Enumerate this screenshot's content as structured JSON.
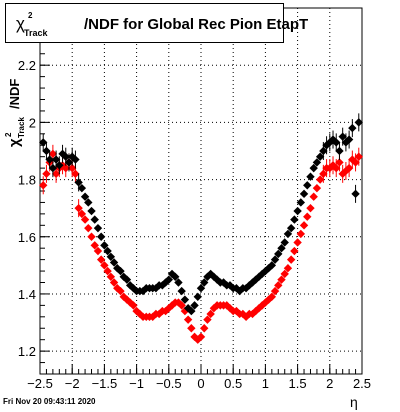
{
  "title": {
    "chi": "χ",
    "sup": "2",
    "sub": "Track",
    "rest": "/NDF for Global Rec Pion EtapT"
  },
  "date": "Fri Nov 20 09:43:11 2020",
  "chart_data": {
    "type": "scatter",
    "title": "χ²_Track/NDF for Global Rec Pion EtapT",
    "xlabel": "η",
    "ylabel": "χ²_Track/NDF",
    "xlim": [
      -2.5,
      2.5
    ],
    "ylim": [
      1.12,
      2.4
    ],
    "xticks": [
      -2.5,
      -2,
      -1.5,
      -1,
      -0.5,
      0,
      0.5,
      1,
      1.5,
      2,
      2.5
    ],
    "xtick_labels": [
      "−2.5",
      "−2",
      "−1.5",
      "−1",
      "−0.5",
      "0",
      "0.5",
      "1",
      "1.5",
      "2",
      "2.5"
    ],
    "yticks": [
      1.2,
      1.4,
      1.6,
      1.8,
      2.0,
      2.2
    ],
    "ytick_labels": [
      "1.2",
      "1.4",
      "1.6",
      "1.8",
      "2",
      "2.2"
    ],
    "grid": true,
    "series": [
      {
        "color": "#000000",
        "x": [
          -2.45,
          -2.4,
          -2.35,
          -2.3,
          -2.25,
          -2.2,
          -2.15,
          -2.1,
          -2.05,
          -2.0,
          -1.95,
          -1.9,
          -1.85,
          -1.8,
          -1.75,
          -1.7,
          -1.65,
          -1.6,
          -1.55,
          -1.5,
          -1.45,
          -1.4,
          -1.35,
          -1.3,
          -1.25,
          -1.2,
          -1.15,
          -1.1,
          -1.05,
          -1.0,
          -0.95,
          -0.9,
          -0.85,
          -0.8,
          -0.75,
          -0.7,
          -0.65,
          -0.6,
          -0.55,
          -0.5,
          -0.45,
          -0.4,
          -0.35,
          -0.3,
          -0.25,
          -0.2,
          -0.15,
          -0.1,
          -0.05,
          0.0,
          0.05,
          0.1,
          0.15,
          0.2,
          0.25,
          0.3,
          0.35,
          0.4,
          0.45,
          0.5,
          0.55,
          0.6,
          0.65,
          0.7,
          0.75,
          0.8,
          0.85,
          0.9,
          0.95,
          1.0,
          1.05,
          1.1,
          1.15,
          1.2,
          1.25,
          1.3,
          1.35,
          1.4,
          1.45,
          1.5,
          1.55,
          1.6,
          1.65,
          1.7,
          1.75,
          1.8,
          1.85,
          1.9,
          1.95,
          2.0,
          2.05,
          2.1,
          2.15,
          2.2,
          2.25,
          2.3,
          2.35,
          2.4,
          2.45
        ],
        "y": [
          1.93,
          1.9,
          1.87,
          1.84,
          1.87,
          1.85,
          1.89,
          1.88,
          1.86,
          1.88,
          1.87,
          1.79,
          1.77,
          1.74,
          1.72,
          1.69,
          1.66,
          1.63,
          1.6,
          1.57,
          1.55,
          1.53,
          1.51,
          1.49,
          1.48,
          1.46,
          1.45,
          1.43,
          1.42,
          1.41,
          1.41,
          1.41,
          1.42,
          1.42,
          1.42,
          1.42,
          1.43,
          1.43,
          1.44,
          1.45,
          1.47,
          1.46,
          1.44,
          1.41,
          1.38,
          1.35,
          1.34,
          1.36,
          1.39,
          1.42,
          1.44,
          1.46,
          1.47,
          1.46,
          1.45,
          1.44,
          1.44,
          1.43,
          1.43,
          1.42,
          1.42,
          1.41,
          1.42,
          1.42,
          1.43,
          1.44,
          1.45,
          1.46,
          1.47,
          1.48,
          1.49,
          1.5,
          1.52,
          1.54,
          1.56,
          1.58,
          1.61,
          1.63,
          1.66,
          1.69,
          1.72,
          1.75,
          1.78,
          1.81,
          1.84,
          1.86,
          1.88,
          1.9,
          1.92,
          1.93,
          1.94,
          1.93,
          1.9,
          1.95,
          1.93,
          1.94,
          1.98,
          1.75,
          2.0
        ]
      },
      {
        "color": "#ff0000",
        "x": [
          -2.45,
          -2.4,
          -2.35,
          -2.3,
          -2.25,
          -2.2,
          -2.15,
          -2.1,
          -2.05,
          -2.0,
          -1.95,
          -1.9,
          -1.85,
          -1.8,
          -1.75,
          -1.7,
          -1.65,
          -1.6,
          -1.55,
          -1.5,
          -1.45,
          -1.4,
          -1.35,
          -1.3,
          -1.25,
          -1.2,
          -1.15,
          -1.1,
          -1.05,
          -1.0,
          -0.95,
          -0.9,
          -0.85,
          -0.8,
          -0.75,
          -0.7,
          -0.65,
          -0.6,
          -0.55,
          -0.5,
          -0.45,
          -0.4,
          -0.35,
          -0.3,
          -0.25,
          -0.2,
          -0.15,
          -0.1,
          -0.05,
          0.0,
          0.05,
          0.1,
          0.15,
          0.2,
          0.25,
          0.3,
          0.35,
          0.4,
          0.45,
          0.5,
          0.55,
          0.6,
          0.65,
          0.7,
          0.75,
          0.8,
          0.85,
          0.9,
          0.95,
          1.0,
          1.05,
          1.1,
          1.15,
          1.2,
          1.25,
          1.3,
          1.35,
          1.4,
          1.45,
          1.5,
          1.55,
          1.6,
          1.65,
          1.7,
          1.75,
          1.8,
          1.85,
          1.9,
          1.95,
          2.0,
          2.05,
          2.1,
          2.15,
          2.2,
          2.25,
          2.3,
          2.35,
          2.4,
          2.45
        ],
        "y": [
          1.78,
          1.82,
          1.86,
          1.89,
          1.82,
          1.84,
          1.85,
          1.84,
          1.86,
          1.84,
          1.82,
          1.7,
          1.68,
          1.66,
          1.63,
          1.6,
          1.57,
          1.55,
          1.52,
          1.5,
          1.48,
          1.46,
          1.44,
          1.42,
          1.41,
          1.39,
          1.38,
          1.37,
          1.36,
          1.34,
          1.33,
          1.32,
          1.32,
          1.32,
          1.32,
          1.33,
          1.33,
          1.34,
          1.34,
          1.35,
          1.36,
          1.37,
          1.37,
          1.36,
          1.34,
          1.31,
          1.28,
          1.25,
          1.24,
          1.25,
          1.28,
          1.31,
          1.33,
          1.35,
          1.36,
          1.36,
          1.36,
          1.36,
          1.35,
          1.34,
          1.34,
          1.33,
          1.33,
          1.32,
          1.33,
          1.33,
          1.34,
          1.35,
          1.36,
          1.37,
          1.38,
          1.39,
          1.41,
          1.43,
          1.45,
          1.47,
          1.49,
          1.52,
          1.55,
          1.58,
          1.61,
          1.64,
          1.67,
          1.7,
          1.74,
          1.77,
          1.8,
          1.82,
          1.84,
          1.84,
          1.85,
          1.84,
          1.86,
          1.82,
          1.83,
          1.84,
          1.87,
          1.86,
          1.88
        ]
      }
    ]
  }
}
